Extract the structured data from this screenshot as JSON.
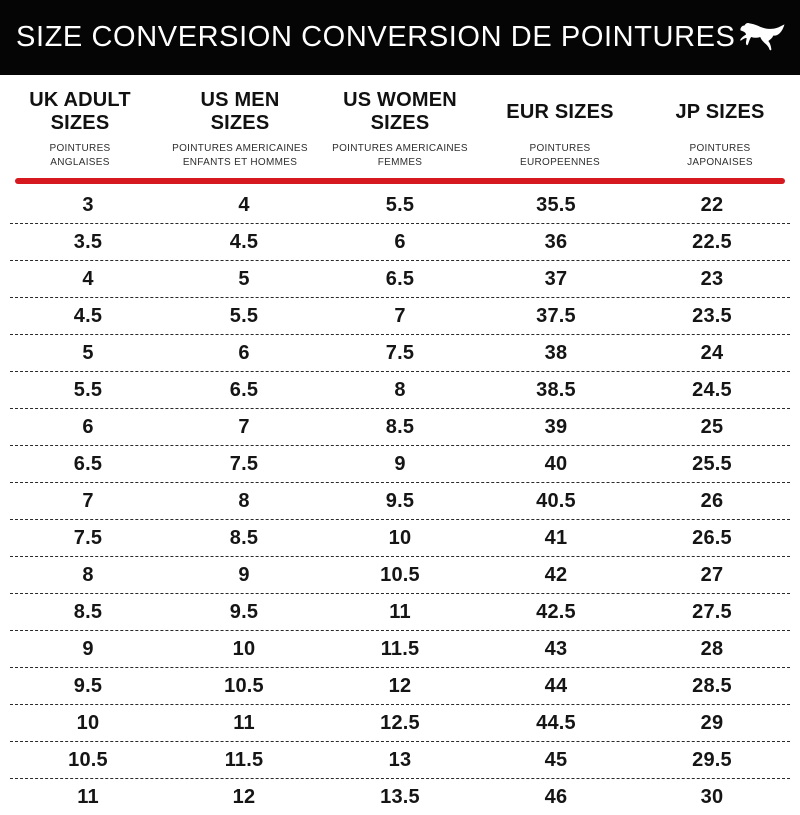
{
  "header": {
    "title": "SIZE CONVERSION CONVERSION DE POINTURES",
    "logo_icon": "puma-leaping-cat-logo",
    "bg_color": "#050505",
    "text_color": "#ffffff"
  },
  "table": {
    "accent_color": "#d6181f",
    "columns": [
      {
        "key": "uk-adult",
        "label": "UK ADULT\nSIZES",
        "sublabel": "POINTURES\nANGLAISES"
      },
      {
        "key": "us-men",
        "label": "US MEN\nSIZES",
        "sublabel": "POINTURES AMERICAINES\nENFANTS ET HOMMES"
      },
      {
        "key": "us-women",
        "label": "US WOMEN\nSIZES",
        "sublabel": "POINTURES AMERICAINES\nFEMMES"
      },
      {
        "key": "eur",
        "label": "EUR SIZES",
        "sublabel": "POINTURES\nEUROPEENNES"
      },
      {
        "key": "jp",
        "label": "JP SIZES",
        "sublabel": "POINTURES\nJAPONAISES"
      }
    ],
    "rows": [
      [
        "3",
        "4",
        "5.5",
        "35.5",
        "22"
      ],
      [
        "3.5",
        "4.5",
        "6",
        "36",
        "22.5"
      ],
      [
        "4",
        "5",
        "6.5",
        "37",
        "23"
      ],
      [
        "4.5",
        "5.5",
        "7",
        "37.5",
        "23.5"
      ],
      [
        "5",
        "6",
        "7.5",
        "38",
        "24"
      ],
      [
        "5.5",
        "6.5",
        "8",
        "38.5",
        "24.5"
      ],
      [
        "6",
        "7",
        "8.5",
        "39",
        "25"
      ],
      [
        "6.5",
        "7.5",
        "9",
        "40",
        "25.5"
      ],
      [
        "7",
        "8",
        "9.5",
        "40.5",
        "26"
      ],
      [
        "7.5",
        "8.5",
        "10",
        "41",
        "26.5"
      ],
      [
        "8",
        "9",
        "10.5",
        "42",
        "27"
      ],
      [
        "8.5",
        "9.5",
        "11",
        "42.5",
        "27.5"
      ],
      [
        "9",
        "10",
        "11.5",
        "43",
        "28"
      ],
      [
        "9.5",
        "10.5",
        "12",
        "44",
        "28.5"
      ],
      [
        "10",
        "11",
        "12.5",
        "44.5",
        "29"
      ],
      [
        "10.5",
        "11.5",
        "13",
        "45",
        "29.5"
      ],
      [
        "11",
        "12",
        "13.5",
        "46",
        "30"
      ]
    ]
  }
}
